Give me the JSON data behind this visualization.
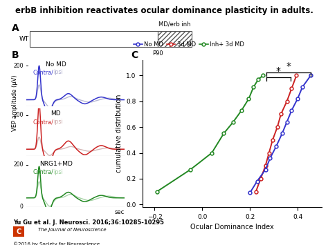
{
  "title": "erbB inhibition reactivates ocular dominance plasticity in adults.",
  "title_fontsize": 8.5,
  "panel_C": {
    "xlabel": "Ocular Dominance Index",
    "ylabel": "cumulative distribution",
    "xlim": [
      -0.25,
      0.5
    ],
    "ylim": [
      -0.02,
      1.12
    ],
    "xticks": [
      -0.2,
      0.0,
      0.2,
      0.4
    ],
    "yticks": [
      0.0,
      0.2,
      0.4,
      0.6,
      0.8,
      1.0
    ],
    "no_md_x": [
      0.2,
      0.23,
      0.265,
      0.285,
      0.31,
      0.335,
      0.355,
      0.375,
      0.4,
      0.42,
      0.455
    ],
    "no_md_y": [
      0.09,
      0.18,
      0.27,
      0.36,
      0.45,
      0.55,
      0.64,
      0.73,
      0.82,
      0.91,
      1.0
    ],
    "md_x": [
      0.225,
      0.245,
      0.265,
      0.28,
      0.295,
      0.315,
      0.33,
      0.355,
      0.375,
      0.395
    ],
    "md_y": [
      0.1,
      0.2,
      0.3,
      0.4,
      0.5,
      0.6,
      0.7,
      0.8,
      0.9,
      1.0
    ],
    "inh_md_x": [
      -0.19,
      -0.05,
      0.04,
      0.09,
      0.13,
      0.165,
      0.195,
      0.215,
      0.235,
      0.255
    ],
    "inh_md_y": [
      0.1,
      0.27,
      0.4,
      0.55,
      0.64,
      0.73,
      0.82,
      0.91,
      0.97,
      1.0
    ],
    "no_md_color": "#3333cc",
    "md_color": "#cc2222",
    "inh_md_color": "#228822",
    "legend_no_md": "No MD",
    "legend_md": "3d MD",
    "legend_inh_md": "Inh+ 3d MD"
  },
  "footer_text": "Yu Gu et al. J. Neurosci. 2016;36:10285-10295",
  "footer2_text": "©2016 by Society for Neuroscience"
}
